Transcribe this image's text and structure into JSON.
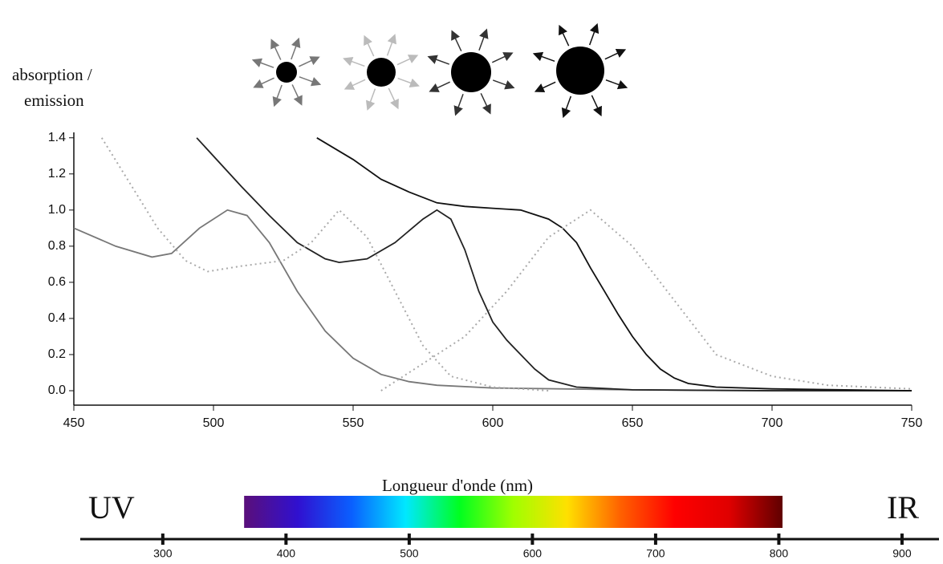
{
  "chart_data": [
    {
      "type": "line",
      "ylabel": [
        "absorption /",
        "emission"
      ],
      "xlabel": "Longueur d'onde (nm)",
      "xlim": [
        450,
        750
      ],
      "xticks": [
        450,
        500,
        550,
        600,
        650,
        700,
        750
      ],
      "ylim": [
        -0.08,
        1.43
      ],
      "yticks": [
        {
          "value": 0,
          "label": "0.0"
        },
        0.2,
        0.4,
        0.6,
        0.8,
        {
          "value": 1,
          "label": "1.0"
        },
        1.2,
        1.4
      ],
      "grid": false,
      "series": [
        {
          "color": "#777777",
          "style": "solid",
          "x": [
            450,
            465,
            478,
            485,
            495,
            505,
            512,
            520,
            530,
            540,
            550,
            560,
            570,
            580,
            600,
            650,
            700,
            750
          ],
          "values": [
            0.9,
            0.8,
            0.74,
            0.76,
            0.9,
            1.0,
            0.97,
            0.82,
            0.55,
            0.33,
            0.18,
            0.09,
            0.05,
            0.03,
            0.015,
            0.005,
            0,
            0
          ]
        },
        {
          "color": "#222222",
          "style": "solid",
          "x": [
            494,
            510,
            520,
            530,
            540,
            545,
            555,
            565,
            575,
            580,
            585,
            590,
            595,
            600,
            605,
            610,
            615,
            620,
            630,
            650,
            700,
            750
          ],
          "values": [
            1.4,
            1.13,
            0.97,
            0.82,
            0.73,
            0.71,
            0.73,
            0.82,
            0.95,
            1.0,
            0.95,
            0.78,
            0.55,
            0.38,
            0.28,
            0.2,
            0.12,
            0.06,
            0.02,
            0.005,
            0,
            0
          ]
        },
        {
          "color": "#111111",
          "style": "solid",
          "x": [
            537,
            550,
            560,
            570,
            580,
            590,
            600,
            610,
            620,
            625,
            630,
            635,
            640,
            645,
            650,
            655,
            660,
            665,
            670,
            680,
            700,
            750
          ],
          "values": [
            1.4,
            1.28,
            1.17,
            1.1,
            1.04,
            1.02,
            1.01,
            1.0,
            0.95,
            0.9,
            0.82,
            0.68,
            0.55,
            0.42,
            0.3,
            0.2,
            0.12,
            0.07,
            0.04,
            0.02,
            0.01,
            0
          ]
        },
        {
          "color": "#aaaaaa",
          "style": "dotted",
          "x": [
            460,
            470,
            480,
            490,
            498,
            510,
            525,
            535,
            545,
            555,
            565,
            575,
            585,
            600,
            620
          ],
          "values": [
            1.4,
            1.15,
            0.9,
            0.72,
            0.66,
            0.69,
            0.72,
            0.82,
            1.0,
            0.85,
            0.55,
            0.25,
            0.08,
            0.02,
            0
          ]
        },
        {
          "color": "#aaaaaa",
          "style": "dotted",
          "x": [
            560,
            590,
            605,
            620,
            635,
            650,
            665,
            680,
            700,
            720,
            750
          ],
          "values": [
            0,
            0.3,
            0.55,
            0.85,
            1.0,
            0.8,
            0.5,
            0.2,
            0.08,
            0.03,
            0.01
          ]
        }
      ]
    },
    {
      "type": "spectrum",
      "left_label": "UV",
      "right_label": "IR",
      "xlim": [
        233,
        930
      ],
      "xticks": [
        300,
        400,
        500,
        600,
        700,
        800,
        900
      ],
      "band": [
        366,
        803
      ],
      "colors": [
        "#5a0f7a",
        "#3010d0",
        "#0a60ff",
        "#00e8ff",
        "#00ff20",
        "#a0ff00",
        "#ffe000",
        "#ff6000",
        "#ff0000",
        "#e00000",
        "#600000"
      ]
    }
  ]
}
